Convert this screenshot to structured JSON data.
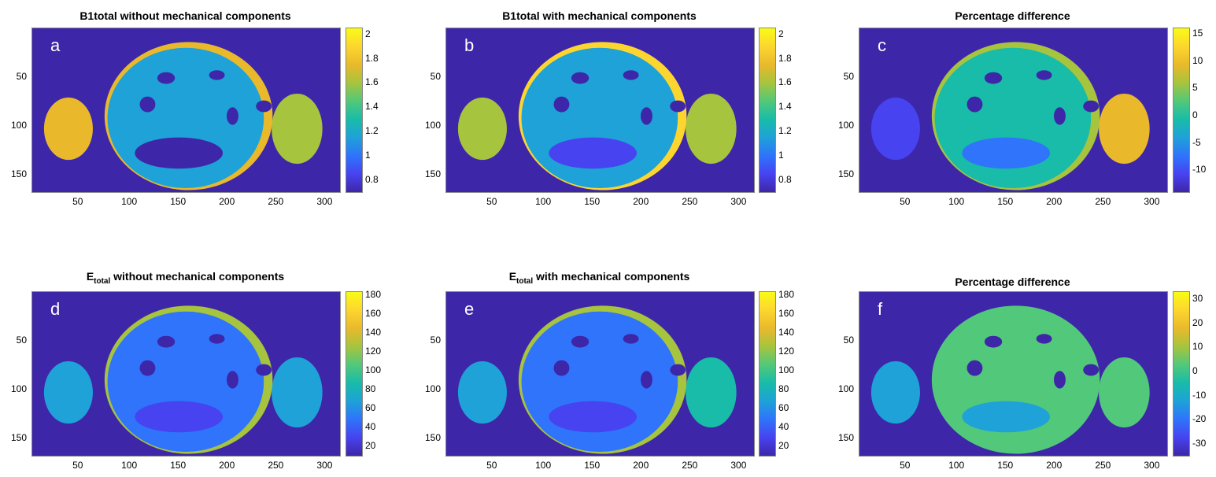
{
  "colormap": [
    "#3e26a8",
    "#4743f0",
    "#2f74fb",
    "#1ea2d8",
    "#18bca8",
    "#52c87a",
    "#a6c43e",
    "#e9b92b",
    "#fcd62f",
    "#f9fb15"
  ],
  "chart_data": [
    {
      "id": "a",
      "type": "heatmap",
      "letter": "a",
      "title": "B1total without mechanical components",
      "title_main": "B1total without mechanical components",
      "title_sub": "",
      "xticks": [
        "50",
        "100",
        "150",
        "200",
        "250",
        "300"
      ],
      "yticks": [
        "50",
        "100",
        "150"
      ],
      "xlim": [
        0,
        315
      ],
      "ylim": [
        0,
        168
      ],
      "clim": [
        0.7,
        2.05
      ],
      "colorbar_ticks": [
        "2",
        "1.8",
        "1.6",
        "1.4",
        "1.2",
        "1",
        "0.8"
      ],
      "colorbar_values": [
        2,
        1.8,
        1.6,
        1.4,
        1.2,
        1,
        0.8
      ]
    },
    {
      "id": "b",
      "type": "heatmap",
      "letter": "b",
      "title": "B1total with mechanical components",
      "title_main": "B1total with mechanical components",
      "title_sub": "",
      "xticks": [
        "50",
        "100",
        "150",
        "200",
        "250",
        "300"
      ],
      "yticks": [
        "50",
        "100",
        "150"
      ],
      "xlim": [
        0,
        315
      ],
      "ylim": [
        0,
        168
      ],
      "clim": [
        0.7,
        2.05
      ],
      "colorbar_ticks": [
        "2",
        "1.8",
        "1.6",
        "1.4",
        "1.2",
        "1",
        "0.8"
      ],
      "colorbar_values": [
        2,
        1.8,
        1.6,
        1.4,
        1.2,
        1,
        0.8
      ]
    },
    {
      "id": "c",
      "type": "heatmap",
      "letter": "c",
      "title": "Percentage difference",
      "title_main": "Percentage difference",
      "title_sub": "",
      "xticks": [
        "50",
        "100",
        "150",
        "200",
        "250",
        "300"
      ],
      "yticks": [
        "50",
        "100",
        "150"
      ],
      "xlim": [
        0,
        315
      ],
      "ylim": [
        0,
        168
      ],
      "clim": [
        -14,
        16
      ],
      "colorbar_ticks": [
        "15",
        "10",
        "5",
        "0",
        "-5",
        "-10"
      ],
      "colorbar_values": [
        15,
        10,
        5,
        0,
        -5,
        -10
      ]
    },
    {
      "id": "d",
      "type": "heatmap",
      "letter": "d",
      "title": "Etotal without mechanical components",
      "title_main": "E",
      "title_sub": "total",
      "title_rest": " without mechanical components",
      "xticks": [
        "50",
        "100",
        "150",
        "200",
        "250",
        "300"
      ],
      "yticks": [
        "50",
        "100",
        "150"
      ],
      "xlim": [
        0,
        315
      ],
      "ylim": [
        0,
        168
      ],
      "clim": [
        10,
        183
      ],
      "colorbar_ticks": [
        "180",
        "160",
        "140",
        "120",
        "100",
        "80",
        "60",
        "40",
        "20"
      ],
      "colorbar_values": [
        180,
        160,
        140,
        120,
        100,
        80,
        60,
        40,
        20
      ]
    },
    {
      "id": "e",
      "type": "heatmap",
      "letter": "e",
      "title": "Etotal with mechanical components",
      "title_main": "E",
      "title_sub": "total",
      "title_rest": " with mechanical components",
      "xticks": [
        "50",
        "100",
        "150",
        "200",
        "250",
        "300"
      ],
      "yticks": [
        "50",
        "100",
        "150"
      ],
      "xlim": [
        0,
        315
      ],
      "ylim": [
        0,
        168
      ],
      "clim": [
        10,
        183
      ],
      "colorbar_ticks": [
        "180",
        "160",
        "140",
        "120",
        "100",
        "80",
        "60",
        "40",
        "20"
      ],
      "colorbar_values": [
        180,
        160,
        140,
        120,
        100,
        80,
        60,
        40,
        20
      ]
    },
    {
      "id": "f",
      "type": "heatmap",
      "letter": "f",
      "title": "Percentage difference",
      "title_main": "Percentage difference",
      "title_sub": "",
      "xticks": [
        "50",
        "100",
        "150",
        "200",
        "250",
        "300"
      ],
      "yticks": [
        "50",
        "100",
        "150"
      ],
      "xlim": [
        0,
        315
      ],
      "ylim": [
        0,
        168
      ],
      "clim": [
        -35,
        33
      ],
      "colorbar_ticks": [
        "30",
        "20",
        "10",
        "0",
        "-10",
        "-20",
        "-30"
      ],
      "colorbar_values": [
        30,
        20,
        10,
        0,
        -10,
        -20,
        -30
      ]
    }
  ]
}
